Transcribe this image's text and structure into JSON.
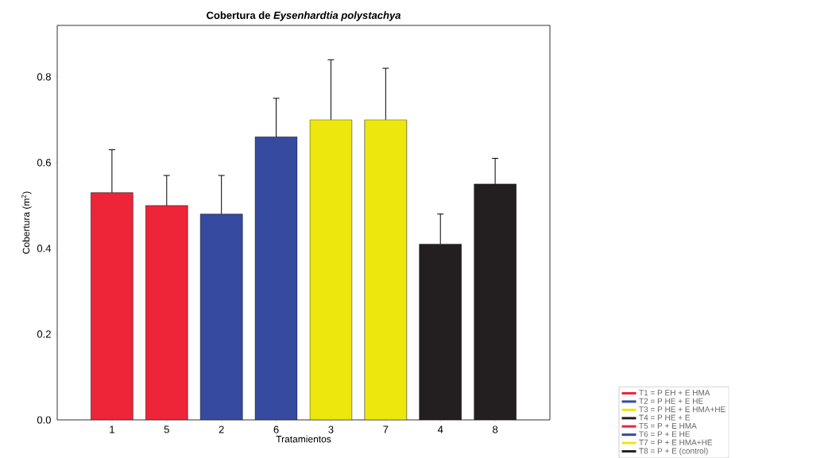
{
  "chart_data": {
    "type": "bar",
    "title": "Cobertura de *Eysenhardtia polystachya*",
    "xlabel": "Tratamientos",
    "ylabel": "Cobertura (m$^{2}$)",
    "categories": [
      "1",
      "5",
      "2",
      "6",
      "3",
      "7",
      "4",
      "8"
    ],
    "series": [
      {
        "name": "T1 = P EH + E HMA",
        "color": "#ee2439",
        "values": [
          0.53,
          null,
          null,
          null,
          null,
          null,
          null,
          null
        ],
        "errors": [
          0.1,
          null,
          null,
          null,
          null,
          null,
          null,
          null
        ]
      },
      {
        "name": "T2 = P HE + E HE",
        "color": "#364a9f",
        "values": [
          null,
          null,
          0.48,
          null,
          null,
          null,
          null,
          null
        ],
        "errors": [
          null,
          null,
          0.09,
          null,
          null,
          null,
          null,
          null
        ]
      },
      {
        "name": "T3 = P HE + E HMA+HE",
        "color": "#ede70e",
        "values": [
          null,
          null,
          null,
          null,
          0.7,
          null,
          null,
          null
        ],
        "errors": [
          null,
          null,
          null,
          null,
          0.14,
          null,
          null,
          null
        ]
      },
      {
        "name": "T4 = P HE + E",
        "color": "#231f20",
        "values": [
          null,
          null,
          null,
          null,
          null,
          null,
          0.41,
          null
        ],
        "errors": [
          null,
          null,
          null,
          null,
          null,
          null,
          0.07,
          null
        ]
      },
      {
        "name": "T5 = P + E HMA",
        "color": "#ee2439",
        "values": [
          null,
          0.5,
          null,
          null,
          null,
          null,
          null,
          null
        ],
        "errors": [
          null,
          0.07,
          null,
          null,
          null,
          null,
          null,
          null
        ]
      },
      {
        "name": "T6 = P + E HE",
        "color": "#364a9f",
        "values": [
          null,
          null,
          null,
          0.66,
          null,
          null,
          null,
          null
        ],
        "errors": [
          null,
          null,
          null,
          0.09,
          null,
          null,
          null,
          null
        ]
      },
      {
        "name": "T7 = P + E HMA+HE",
        "color": "#ede70e",
        "values": [
          null,
          null,
          null,
          null,
          null,
          0.7,
          null,
          null
        ],
        "errors": [
          null,
          null,
          null,
          null,
          null,
          0.12,
          null,
          null
        ]
      },
      {
        "name": "T8 = P + E (control)",
        "color": "#231f20",
        "values": [
          null,
          null,
          null,
          null,
          null,
          null,
          null,
          0.55
        ],
        "errors": [
          null,
          null,
          null,
          null,
          null,
          null,
          null,
          0.06
        ]
      }
    ],
    "ylim": [
      0,
      0.92
    ],
    "yticks": [
      {
        "value": 0,
        "label": "0.0"
      },
      0.2,
      0.4,
      0.6,
      0.8
    ],
    "grid": false,
    "legend": "bottom right"
  }
}
